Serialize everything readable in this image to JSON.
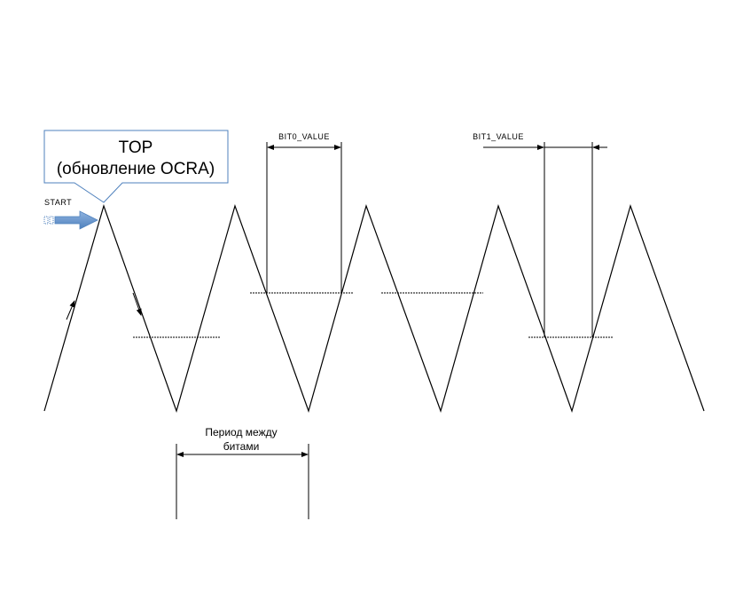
{
  "callout": {
    "line1": "TOP",
    "line2": "(обновление OCRA)",
    "border_color": "#4f81bd"
  },
  "start_label": "START",
  "start_arrow_color": "#4f81bd",
  "bit0_label": "BIT0_VALUE",
  "bit1_label": "BIT1_VALUE",
  "period_label": {
    "line1": "Период между",
    "line2": "битами"
  }
}
